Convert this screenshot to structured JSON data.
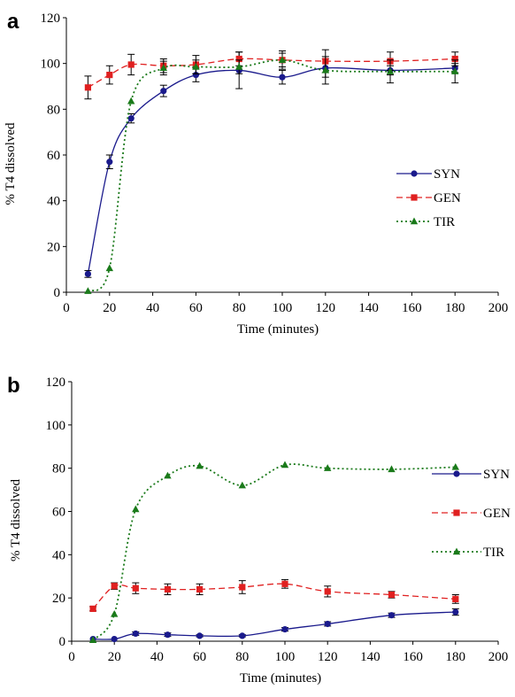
{
  "chart_data": [
    {
      "type": "line",
      "panel_label": "a",
      "xlabel": "Time (minutes)",
      "ylabel": "% T4 dissolved",
      "xlim": [
        0,
        200
      ],
      "ylim": [
        0,
        120
      ],
      "xticks": [
        0,
        20,
        40,
        60,
        80,
        100,
        120,
        140,
        160,
        180,
        200
      ],
      "yticks": [
        0,
        20,
        40,
        60,
        80,
        100,
        120
      ],
      "grid": false,
      "legend_position": "right",
      "series": [
        {
          "name": "SYN",
          "color": "#1a1a8c",
          "dash": "solid",
          "marker": "circle",
          "x": [
            10,
            20,
            30,
            45,
            60,
            80,
            100,
            120,
            150,
            180
          ],
          "y": [
            8,
            57,
            76,
            88,
            95,
            97,
            94,
            98,
            97,
            98
          ],
          "err": [
            1.5,
            3,
            2,
            2.5,
            3,
            8,
            3,
            4,
            2,
            2
          ]
        },
        {
          "name": "GEN",
          "color": "#e02020",
          "dash": "dashed",
          "marker": "square",
          "x": [
            10,
            20,
            30,
            45,
            60,
            80,
            100,
            120,
            150,
            180
          ],
          "y": [
            89.5,
            95,
            99.5,
            99,
            99.5,
            102,
            101.5,
            101,
            101,
            102
          ],
          "err": [
            5,
            4,
            4.5,
            3,
            4,
            3,
            4,
            5,
            4,
            3
          ]
        },
        {
          "name": "TIR",
          "color": "#1a7a1a",
          "dash": "dotted",
          "marker": "triangle",
          "x": [
            10,
            20,
            30,
            45,
            60,
            80,
            100,
            120,
            150,
            180
          ],
          "y": [
            0.5,
            10.5,
            83.5,
            98,
            98.5,
            98.5,
            101.5,
            97,
            96.5,
            96.5
          ],
          "err": [
            0,
            0,
            0,
            3,
            3,
            3,
            3,
            6,
            5,
            5
          ]
        }
      ]
    },
    {
      "type": "line",
      "panel_label": "b",
      "xlabel": "Time (minutes)",
      "ylabel": "% T4 dissolved",
      "xlim": [
        0,
        200
      ],
      "ylim": [
        0,
        120
      ],
      "xticks": [
        0,
        20,
        40,
        60,
        80,
        100,
        120,
        140,
        160,
        180,
        200
      ],
      "yticks": [
        0,
        20,
        40,
        60,
        80,
        100,
        120
      ],
      "grid": false,
      "legend_position": "right",
      "series": [
        {
          "name": "SYN",
          "color": "#1a1a8c",
          "dash": "solid",
          "marker": "circle",
          "x": [
            10,
            20,
            30,
            45,
            60,
            80,
            100,
            120,
            150,
            180
          ],
          "y": [
            1,
            1,
            3.5,
            3,
            2.5,
            2.5,
            5.5,
            8,
            12,
            13.5
          ],
          "err": [
            0,
            0,
            0.8,
            0.8,
            0.5,
            0.5,
            0.8,
            1,
            1,
            1.5
          ]
        },
        {
          "name": "GEN",
          "color": "#e02020",
          "dash": "dashed",
          "marker": "square",
          "x": [
            10,
            20,
            30,
            45,
            60,
            80,
            100,
            120,
            150,
            180
          ],
          "y": [
            15,
            25.5,
            24.5,
            24,
            24,
            25,
            26.5,
            23,
            21.5,
            19.5
          ],
          "err": [
            1,
            1.5,
            2.5,
            2.5,
            2.5,
            3,
            2,
            2.5,
            1.5,
            2
          ]
        },
        {
          "name": "TIR",
          "color": "#1a7a1a",
          "dash": "dotted",
          "marker": "triangle",
          "x": [
            10,
            20,
            30,
            45,
            60,
            80,
            100,
            120,
            150,
            180
          ],
          "y": [
            0.5,
            12.5,
            61,
            76.5,
            81,
            72,
            81.5,
            80,
            79.5,
            80.5
          ],
          "err": [
            0,
            0,
            0,
            0,
            0,
            0,
            0,
            0,
            0,
            0
          ]
        }
      ]
    }
  ]
}
